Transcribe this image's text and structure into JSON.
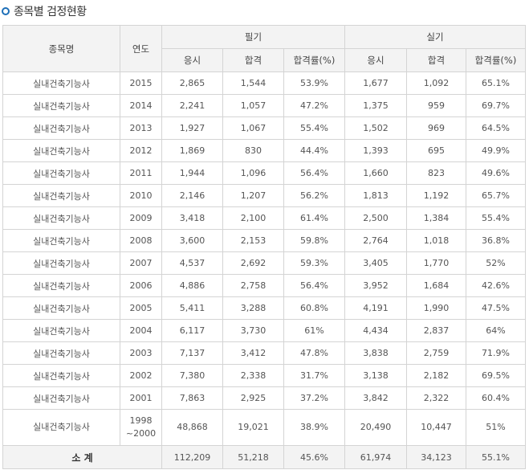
{
  "section_title": "종목별 검정현황",
  "headers": {
    "name": "종목명",
    "year": "연도",
    "written": "필기",
    "practical": "실기",
    "applicants": "응시",
    "passed": "합격",
    "pass_rate": "합격률(%)"
  },
  "rows": [
    {
      "name": "실내건축기능사",
      "year": "2015",
      "w_app": "2,865",
      "w_pass": "1,544",
      "w_rate": "53.9%",
      "p_app": "1,677",
      "p_pass": "1,092",
      "p_rate": "65.1%"
    },
    {
      "name": "실내건축기능사",
      "year": "2014",
      "w_app": "2,241",
      "w_pass": "1,057",
      "w_rate": "47.2%",
      "p_app": "1,375",
      "p_pass": "959",
      "p_rate": "69.7%"
    },
    {
      "name": "실내건축기능사",
      "year": "2013",
      "w_app": "1,927",
      "w_pass": "1,067",
      "w_rate": "55.4%",
      "p_app": "1,502",
      "p_pass": "969",
      "p_rate": "64.5%"
    },
    {
      "name": "실내건축기능사",
      "year": "2012",
      "w_app": "1,869",
      "w_pass": "830",
      "w_rate": "44.4%",
      "p_app": "1,393",
      "p_pass": "695",
      "p_rate": "49.9%"
    },
    {
      "name": "실내건축기능사",
      "year": "2011",
      "w_app": "1,944",
      "w_pass": "1,096",
      "w_rate": "56.4%",
      "p_app": "1,660",
      "p_pass": "823",
      "p_rate": "49.6%"
    },
    {
      "name": "실내건축기능사",
      "year": "2010",
      "w_app": "2,146",
      "w_pass": "1,207",
      "w_rate": "56.2%",
      "p_app": "1,813",
      "p_pass": "1,192",
      "p_rate": "65.7%"
    },
    {
      "name": "실내건축기능사",
      "year": "2009",
      "w_app": "3,418",
      "w_pass": "2,100",
      "w_rate": "61.4%",
      "p_app": "2,500",
      "p_pass": "1,384",
      "p_rate": "55.4%"
    },
    {
      "name": "실내건축기능사",
      "year": "2008",
      "w_app": "3,600",
      "w_pass": "2,153",
      "w_rate": "59.8%",
      "p_app": "2,764",
      "p_pass": "1,018",
      "p_rate": "36.8%"
    },
    {
      "name": "실내건축기능사",
      "year": "2007",
      "w_app": "4,537",
      "w_pass": "2,692",
      "w_rate": "59.3%",
      "p_app": "3,405",
      "p_pass": "1,770",
      "p_rate": "52%"
    },
    {
      "name": "실내건축기능사",
      "year": "2006",
      "w_app": "4,886",
      "w_pass": "2,758",
      "w_rate": "56.4%",
      "p_app": "3,952",
      "p_pass": "1,684",
      "p_rate": "42.6%"
    },
    {
      "name": "실내건축기능사",
      "year": "2005",
      "w_app": "5,411",
      "w_pass": "3,288",
      "w_rate": "60.8%",
      "p_app": "4,191",
      "p_pass": "1,990",
      "p_rate": "47.5%"
    },
    {
      "name": "실내건축기능사",
      "year": "2004",
      "w_app": "6,117",
      "w_pass": "3,730",
      "w_rate": "61%",
      "p_app": "4,434",
      "p_pass": "2,837",
      "p_rate": "64%"
    },
    {
      "name": "실내건축기능사",
      "year": "2003",
      "w_app": "7,137",
      "w_pass": "3,412",
      "w_rate": "47.8%",
      "p_app": "3,838",
      "p_pass": "2,759",
      "p_rate": "71.9%"
    },
    {
      "name": "실내건축기능사",
      "year": "2002",
      "w_app": "7,380",
      "w_pass": "2,338",
      "w_rate": "31.7%",
      "p_app": "3,138",
      "p_pass": "2,182",
      "p_rate": "69.5%"
    },
    {
      "name": "실내건축기능사",
      "year": "2001",
      "w_app": "7,863",
      "w_pass": "2,925",
      "w_rate": "37.2%",
      "p_app": "3,842",
      "p_pass": "2,322",
      "p_rate": "60.4%"
    }
  ],
  "range_row": {
    "name": "실내건축기능사",
    "year_from": "1998",
    "year_to": "~2000",
    "w_app": "48,868",
    "w_pass": "19,021",
    "w_rate": "38.9%",
    "p_app": "20,490",
    "p_pass": "10,447",
    "p_rate": "51%"
  },
  "total": {
    "label": "소 계",
    "w_app": "112,209",
    "w_pass": "51,218",
    "w_rate": "45.6%",
    "p_app": "61,974",
    "p_pass": "34,123",
    "p_rate": "55.1%"
  }
}
